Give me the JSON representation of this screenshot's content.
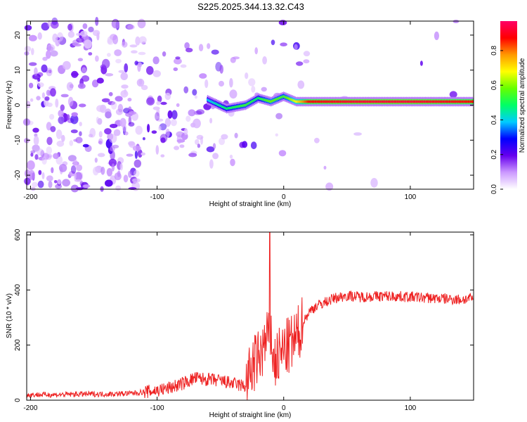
{
  "title": "S225.2025.344.13.32.C43",
  "chart_data": [
    {
      "type": "heatmap",
      "xlabel": "Height of straight line (km)",
      "ylabel": "Frequency (Hz)",
      "xlim": [
        -203,
        150
      ],
      "ylim": [
        -24,
        24
      ],
      "xticks": [
        -200,
        -100,
        0,
        100
      ],
      "yticks": [
        -20,
        -10,
        0,
        10,
        20
      ],
      "xtick_labels": [
        "-200",
        "-100",
        "0",
        "100"
      ],
      "ytick_labels": [
        "-20",
        "-10",
        "0",
        "10",
        "20"
      ],
      "colorbar": {
        "label": "Normalized spectral amplitude",
        "range": [
          0.0,
          0.97
        ],
        "ticks": [
          0.0,
          0.2,
          0.4,
          0.6,
          0.8
        ],
        "tick_labels": [
          "0.0",
          "0.2",
          "0.4",
          "0.6",
          "0.8"
        ],
        "colormap": [
          "#ffffff",
          "#cc99ff",
          "#6600ee",
          "#0000ff",
          "#00ccff",
          "#00ff66",
          "#66ff00",
          "#ffff00",
          "#ff9900",
          "#ff0000",
          "#ff0066"
        ]
      },
      "carrier_track": [
        {
          "x": -60,
          "y": 1.5,
          "v": 0.4
        },
        {
          "x": -45,
          "y": -1,
          "v": 0.5
        },
        {
          "x": -30,
          "y": 0,
          "v": 0.55
        },
        {
          "x": -20,
          "y": 2,
          "v": 0.5
        },
        {
          "x": -10,
          "y": 1,
          "v": 0.6
        },
        {
          "x": 0,
          "y": 2.5,
          "v": 0.55
        },
        {
          "x": 10,
          "y": 1,
          "v": 0.7
        },
        {
          "x": 20,
          "y": 1,
          "v": 0.9
        },
        {
          "x": 60,
          "y": 1,
          "v": 0.95
        },
        {
          "x": 100,
          "y": 1,
          "v": 0.95
        },
        {
          "x": 150,
          "y": 1,
          "v": 0.9
        }
      ]
    },
    {
      "type": "line",
      "xlabel": "Height of straight line (km)",
      "ylabel": "SNR (10 * v/v)",
      "xlim": [
        -203,
        150
      ],
      "ylim": [
        0,
        610
      ],
      "xticks": [
        -200,
        -100,
        0,
        100
      ],
      "yticks": [
        0,
        200,
        400,
        600
      ],
      "xtick_labels": [
        "-200",
        "-100",
        "0",
        "100"
      ],
      "ytick_labels": [
        "0",
        "200",
        "400",
        "600"
      ],
      "series": [
        {
          "name": "SNR",
          "color": "#ee2222",
          "x": [
            -203,
            -180,
            -160,
            -140,
            -120,
            -100,
            -90,
            -80,
            -70,
            -60,
            -50,
            -40,
            -30,
            -25,
            -20,
            -15,
            -12,
            -10,
            -8,
            -5,
            0,
            5,
            10,
            15,
            20,
            25,
            30,
            40,
            50,
            60,
            80,
            100,
            120,
            140,
            150
          ],
          "y": [
            20,
            20,
            22,
            22,
            25,
            35,
            45,
            60,
            80,
            75,
            70,
            60,
            50,
            120,
            150,
            200,
            230,
            250,
            130,
            150,
            180,
            200,
            220,
            280,
            320,
            340,
            350,
            370,
            380,
            375,
            378,
            375,
            370,
            365,
            370
          ],
          "spike": {
            "x": -11,
            "y": 610
          }
        }
      ]
    }
  ]
}
